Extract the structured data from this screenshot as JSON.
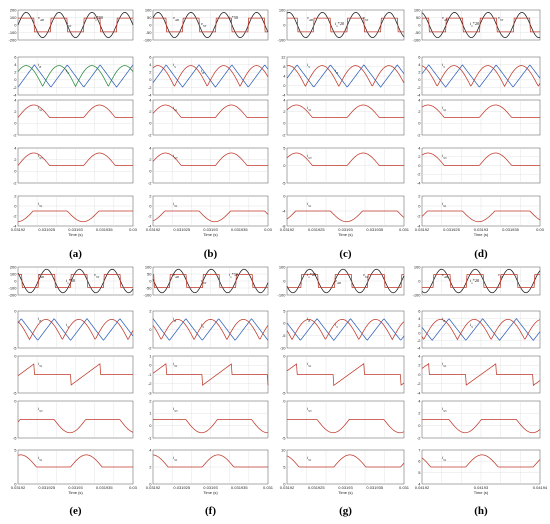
{
  "captions": [
    "(a)",
    "(b)",
    "(c)",
    "(d)",
    "(e)",
    "(f)",
    "(g)",
    "(h)"
  ],
  "chart_data": [
    {
      "type": "line",
      "panel": "(a)",
      "x_label": "Time (s)",
      "x_ticks": [
        "0.03192",
        "0.031925",
        "0.03193",
        "0.031935",
        "0.03"
      ],
      "rows": [
        {
          "y_ticks": [
            "200",
            "100",
            "0",
            "-100",
            "-200"
          ],
          "labels": [
            "vAB",
            "vST",
            "ix*50"
          ]
        },
        {
          "y_ticks": [
            "6",
            "4",
            "2",
            "0",
            "-2",
            "-4"
          ],
          "labels": [
            "iB",
            "iS"
          ]
        },
        {
          "y_ticks": [
            "4",
            "2",
            "0",
            "-2"
          ],
          "labels": [
            "iS1"
          ]
        },
        {
          "y_ticks": [
            "4",
            "2",
            "0",
            "-2"
          ],
          "labels": [
            "iS3"
          ]
        },
        {
          "y_ticks": [
            "2",
            "0",
            "-2",
            "-4"
          ],
          "labels": [
            "iS1"
          ]
        }
      ]
    },
    {
      "type": "line",
      "panel": "(b)",
      "x_label": "Time (s)",
      "x_ticks": [
        "0.03192",
        "0.031925",
        "0.03193",
        "0.031935",
        "0.03"
      ],
      "rows": [
        {
          "y_ticks": [
            "100",
            "50",
            "0",
            "-50",
            "-100"
          ],
          "labels": [
            "vAB",
            "vST",
            "ix*50"
          ]
        },
        {
          "y_ticks": [
            "6",
            "4",
            "2",
            "0",
            "-2",
            "-4"
          ],
          "labels": [
            "iS",
            "iB"
          ]
        },
        {
          "y_ticks": [
            "4",
            "2",
            "0",
            "-2"
          ],
          "labels": [
            "iS1"
          ]
        },
        {
          "y_ticks": [
            "4",
            "2",
            "0",
            "-2"
          ],
          "labels": [
            "iS3"
          ]
        },
        {
          "y_ticks": [
            "2",
            "0",
            "-2",
            "-4"
          ],
          "labels": [
            "iS1"
          ]
        }
      ]
    },
    {
      "type": "line",
      "panel": "(c)",
      "x_label": "Time (s)",
      "x_ticks": [
        "0.03192",
        "0.031925",
        "0.03193",
        "0.031935",
        "0.031"
      ],
      "rows": [
        {
          "y_ticks": [
            "100",
            "0",
            "-100"
          ],
          "labels": [
            "vAB",
            "ix*20",
            "vST"
          ]
        },
        {
          "y_ticks": [
            "12",
            "8",
            "4",
            "0",
            "-4"
          ],
          "labels": [
            "iS",
            "iB"
          ]
        },
        {
          "y_ticks": [
            "4",
            "2",
            "0",
            "-2"
          ],
          "labels": [
            "iS1"
          ]
        },
        {
          "y_ticks": [
            "5",
            "0",
            "-5"
          ],
          "labels": [
            "iS3"
          ]
        },
        {
          "y_ticks": [
            "0",
            "-4",
            "-8"
          ],
          "labels": [
            "iS1"
          ]
        }
      ]
    },
    {
      "type": "line",
      "panel": "(d)",
      "x_label": "Time (s)",
      "x_ticks": [
        "0.03192",
        "0.031925",
        "0.03193",
        "0.031935",
        "0.03"
      ],
      "rows": [
        {
          "y_ticks": [
            "100",
            "50",
            "0",
            "-50",
            "-100"
          ],
          "labels": [
            "vAB",
            "ix*20",
            "vST"
          ]
        },
        {
          "y_ticks": [
            "6",
            "4",
            "2",
            "0",
            "-2",
            "-4"
          ],
          "labels": [
            "iS"
          ]
        },
        {
          "y_ticks": [
            "4",
            "2",
            "0",
            "-2"
          ],
          "labels": [
            "iS1"
          ]
        },
        {
          "y_ticks": [
            "4",
            "2",
            "0",
            "-2",
            "-4"
          ],
          "labels": [
            "iS3"
          ]
        },
        {
          "y_ticks": [
            "2",
            "0",
            "-2",
            "-4"
          ],
          "labels": [
            "iS1"
          ]
        }
      ]
    },
    {
      "type": "line",
      "panel": "(e)",
      "x_label": "Time (s)",
      "x_ticks": [
        "0.03192",
        "0.031925",
        "0.03193",
        "0.031935",
        "0.03"
      ],
      "rows": [
        {
          "y_ticks": [
            "200",
            "100",
            "0",
            "-100",
            "-200"
          ],
          "labels": [
            "vAB",
            "ix*50",
            "vST"
          ]
        },
        {
          "y_ticks": [
            "0",
            "-5"
          ],
          "labels": [
            "iB",
            "iS"
          ]
        },
        {
          "y_ticks": [
            "0",
            "-5"
          ],
          "labels": [
            "iS1"
          ]
        },
        {
          "y_ticks": [
            "0",
            "-5"
          ],
          "labels": [
            "iS3"
          ]
        },
        {
          "y_ticks": [
            "5",
            "0"
          ],
          "labels": [
            "iS1"
          ]
        }
      ]
    },
    {
      "type": "line",
      "panel": "(f)",
      "x_label": "Time (s)",
      "x_ticks": [
        "0.03192",
        "0.031925",
        "0.03193",
        "0.031935",
        "0.031"
      ],
      "rows": [
        {
          "y_ticks": [
            "100",
            "50",
            "0",
            "-50",
            "-100"
          ],
          "labels": [
            "vAB",
            "vST",
            "ix*50"
          ]
        },
        {
          "y_ticks": [
            "2",
            "0",
            "-2"
          ],
          "labels": [
            "iB",
            "iS"
          ]
        },
        {
          "y_ticks": [
            "1",
            "0",
            "-1",
            "-2",
            "-3"
          ],
          "labels": [
            "iS1"
          ]
        },
        {
          "y_ticks": [
            "2",
            "1",
            "0",
            "-1"
          ],
          "labels": [
            "iS3"
          ]
        },
        {
          "y_ticks": [
            "4",
            "2",
            "0"
          ],
          "labels": [
            "iS1"
          ]
        }
      ]
    },
    {
      "type": "line",
      "panel": "(g)",
      "x_label": "Time (s)",
      "x_ticks": [
        "0.03192",
        "0.031925",
        "0.03193",
        "0.031935",
        "0.031"
      ],
      "rows": [
        {
          "y_ticks": [
            "100",
            "0",
            "-100"
          ],
          "labels": [
            "ix*20",
            "vAB",
            "vST"
          ]
        },
        {
          "y_ticks": [
            "5",
            "0",
            "-5",
            "-10"
          ],
          "labels": [
            "iB",
            "iS"
          ]
        },
        {
          "y_ticks": [
            "0",
            "-5"
          ],
          "labels": [
            "iS1"
          ]
        },
        {
          "y_ticks": [
            "0",
            "-5"
          ],
          "labels": [
            "iS3"
          ]
        },
        {
          "y_ticks": [
            "10",
            "5",
            "0"
          ],
          "labels": [
            "iS1"
          ]
        }
      ]
    },
    {
      "type": "line",
      "panel": "(h)",
      "x_label": "Time (s)",
      "x_ticks": [
        "0.04192",
        "0.04193",
        "0.04194"
      ],
      "rows": [
        {
          "y_ticks": [
            "100",
            "0",
            "-100"
          ],
          "labels": [
            "vAB",
            "ix*20",
            "vST"
          ]
        },
        {
          "y_ticks": [
            "6",
            "4",
            "2",
            "0",
            "-2",
            "-4"
          ],
          "labels": [
            "iB",
            "iS"
          ]
        },
        {
          "y_ticks": [
            "4",
            "2",
            "0",
            "-2",
            "-4"
          ],
          "labels": [
            "iS1"
          ]
        },
        {
          "y_ticks": [
            "4",
            "2",
            "0",
            "-2"
          ],
          "labels": [
            "iS3"
          ]
        },
        {
          "y_ticks": [
            "7",
            "6",
            "5",
            "4"
          ],
          "labels": [
            "iS1"
          ]
        }
      ]
    }
  ],
  "colors": {
    "sine": "#1a1a1a",
    "square": "#c0392b",
    "pulse": "#c0392b",
    "blue": "#2e5fb8",
    "green": "#2a8a3a",
    "grid": "#d8d8d8"
  }
}
